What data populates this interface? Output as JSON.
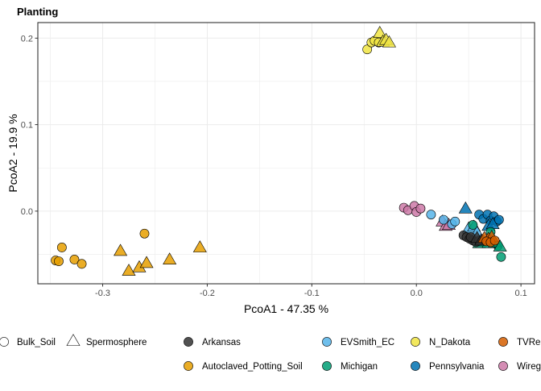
{
  "chart_data": {
    "type": "scatter",
    "title": "Planting",
    "xlabel": "PcoA1 - 47.35 %",
    "ylabel": "PcoA2 - 19.9 %",
    "xlim": [
      -0.362,
      0.113
    ],
    "ylim": [
      -0.084,
      0.218
    ],
    "x_ticks": [
      -0.3,
      -0.2,
      -0.1,
      0.0,
      0.1
    ],
    "x_tick_labels": [
      "-0.3",
      "-0.2",
      "-0.1",
      "0.0",
      "0.1"
    ],
    "y_ticks": [
      0.0,
      0.1,
      0.2
    ],
    "y_tick_labels": [
      "0.0",
      "0.1",
      "0.2"
    ],
    "grid": true,
    "legend_position": "bottom",
    "shape_legend": [
      {
        "label": "Bulk_Soil",
        "shape": "circle"
      },
      {
        "label": "Spermosphere",
        "shape": "triangle"
      }
    ],
    "color_legend": [
      {
        "label": "Arkansas",
        "color": "#333333"
      },
      {
        "label": "EVSmith_EC",
        "color": "#56B4E9"
      },
      {
        "label": "N_Dakota",
        "color": "#F0E442"
      },
      {
        "label": "TVRe",
        "color": "#D55E00"
      },
      {
        "label": "Autoclaved_Potting_Soil",
        "color": "#E69F00"
      },
      {
        "label": "Michigan",
        "color": "#009E73"
      },
      {
        "label": "Pennsylvania",
        "color": "#0072B2"
      },
      {
        "label": "Wireg",
        "color": "#CC79A7"
      }
    ],
    "points": [
      {
        "x": -0.345,
        "y": -0.057,
        "group": "Autoclaved_Potting_Soil",
        "shape": "circle"
      },
      {
        "x": -0.342,
        "y": -0.058,
        "group": "Autoclaved_Potting_Soil",
        "shape": "circle"
      },
      {
        "x": -0.339,
        "y": -0.042,
        "group": "Autoclaved_Potting_Soil",
        "shape": "circle"
      },
      {
        "x": -0.327,
        "y": -0.056,
        "group": "Autoclaved_Potting_Soil",
        "shape": "circle"
      },
      {
        "x": -0.32,
        "y": -0.061,
        "group": "Autoclaved_Potting_Soil",
        "shape": "circle"
      },
      {
        "x": -0.26,
        "y": -0.026,
        "group": "Autoclaved_Potting_Soil",
        "shape": "circle"
      },
      {
        "x": -0.283,
        "y": -0.047,
        "group": "Autoclaved_Potting_Soil",
        "shape": "triangle"
      },
      {
        "x": -0.275,
        "y": -0.07,
        "group": "Autoclaved_Potting_Soil",
        "shape": "triangle"
      },
      {
        "x": -0.265,
        "y": -0.066,
        "group": "Autoclaved_Potting_Soil",
        "shape": "triangle"
      },
      {
        "x": -0.258,
        "y": -0.061,
        "group": "Autoclaved_Potting_Soil",
        "shape": "triangle"
      },
      {
        "x": -0.236,
        "y": -0.057,
        "group": "Autoclaved_Potting_Soil",
        "shape": "triangle"
      },
      {
        "x": -0.207,
        "y": -0.043,
        "group": "Autoclaved_Potting_Soil",
        "shape": "triangle"
      },
      {
        "x": -0.047,
        "y": 0.187,
        "group": "N_Dakota",
        "shape": "circle"
      },
      {
        "x": -0.043,
        "y": 0.195,
        "group": "N_Dakota",
        "shape": "circle"
      },
      {
        "x": -0.04,
        "y": 0.197,
        "group": "N_Dakota",
        "shape": "circle"
      },
      {
        "x": -0.036,
        "y": 0.195,
        "group": "N_Dakota",
        "shape": "circle"
      },
      {
        "x": -0.035,
        "y": 0.205,
        "group": "N_Dakota",
        "shape": "triangle"
      },
      {
        "x": -0.032,
        "y": 0.195,
        "group": "N_Dakota",
        "shape": "triangle"
      },
      {
        "x": -0.029,
        "y": 0.197,
        "group": "N_Dakota",
        "shape": "triangle"
      },
      {
        "x": -0.026,
        "y": 0.194,
        "group": "N_Dakota",
        "shape": "triangle"
      },
      {
        "x": -0.012,
        "y": 0.004,
        "group": "Wireg",
        "shape": "circle"
      },
      {
        "x": -0.008,
        "y": 0.001,
        "group": "Wireg",
        "shape": "circle"
      },
      {
        "x": -0.002,
        "y": 0.006,
        "group": "Wireg",
        "shape": "circle"
      },
      {
        "x": 0.0,
        "y": -0.001,
        "group": "Wireg",
        "shape": "circle"
      },
      {
        "x": 0.004,
        "y": 0.003,
        "group": "Wireg",
        "shape": "circle"
      },
      {
        "x": 0.025,
        "y": -0.013,
        "group": "Wireg",
        "shape": "triangle"
      },
      {
        "x": 0.028,
        "y": -0.018,
        "group": "Wireg",
        "shape": "triangle"
      },
      {
        "x": 0.031,
        "y": -0.017,
        "group": "Wireg",
        "shape": "triangle"
      },
      {
        "x": 0.014,
        "y": -0.004,
        "group": "EVSmith_EC",
        "shape": "circle"
      },
      {
        "x": 0.026,
        "y": -0.01,
        "group": "EVSmith_EC",
        "shape": "circle"
      },
      {
        "x": 0.034,
        "y": -0.015,
        "group": "EVSmith_EC",
        "shape": "circle"
      },
      {
        "x": 0.037,
        "y": -0.012,
        "group": "EVSmith_EC",
        "shape": "circle"
      },
      {
        "x": 0.05,
        "y": -0.021,
        "group": "EVSmith_EC",
        "shape": "triangle"
      },
      {
        "x": 0.055,
        "y": -0.019,
        "group": "EVSmith_EC",
        "shape": "triangle"
      },
      {
        "x": 0.058,
        "y": -0.026,
        "group": "EVSmith_EC",
        "shape": "triangle"
      },
      {
        "x": 0.047,
        "y": 0.002,
        "group": "Pennsylvania",
        "shape": "triangle"
      },
      {
        "x": 0.06,
        "y": -0.004,
        "group": "Pennsylvania",
        "shape": "circle"
      },
      {
        "x": 0.064,
        "y": -0.009,
        "group": "Pennsylvania",
        "shape": "circle"
      },
      {
        "x": 0.068,
        "y": -0.004,
        "group": "Pennsylvania",
        "shape": "circle"
      },
      {
        "x": 0.071,
        "y": -0.011,
        "group": "Pennsylvania",
        "shape": "circle"
      },
      {
        "x": 0.074,
        "y": -0.006,
        "group": "Pennsylvania",
        "shape": "circle"
      },
      {
        "x": 0.077,
        "y": -0.012,
        "group": "Pennsylvania",
        "shape": "circle"
      },
      {
        "x": 0.079,
        "y": -0.01,
        "group": "Pennsylvania",
        "shape": "circle"
      },
      {
        "x": 0.069,
        "y": -0.018,
        "group": "Pennsylvania",
        "shape": "triangle"
      },
      {
        "x": 0.073,
        "y": -0.016,
        "group": "Pennsylvania",
        "shape": "triangle"
      },
      {
        "x": 0.054,
        "y": -0.016,
        "group": "Michigan",
        "shape": "circle"
      },
      {
        "x": 0.071,
        "y": -0.024,
        "group": "Michigan",
        "shape": "circle"
      },
      {
        "x": 0.078,
        "y": -0.04,
        "group": "Michigan",
        "shape": "circle"
      },
      {
        "x": 0.081,
        "y": -0.053,
        "group": "Michigan",
        "shape": "circle"
      },
      {
        "x": 0.06,
        "y": -0.038,
        "group": "Michigan",
        "shape": "triangle"
      },
      {
        "x": 0.064,
        "y": -0.036,
        "group": "Michigan",
        "shape": "triangle"
      },
      {
        "x": 0.069,
        "y": -0.038,
        "group": "Michigan",
        "shape": "triangle"
      },
      {
        "x": 0.075,
        "y": -0.037,
        "group": "Michigan",
        "shape": "triangle"
      },
      {
        "x": 0.08,
        "y": -0.042,
        "group": "Michigan",
        "shape": "triangle"
      },
      {
        "x": 0.045,
        "y": -0.028,
        "group": "Arkansas",
        "shape": "circle"
      },
      {
        "x": 0.048,
        "y": -0.03,
        "group": "Arkansas",
        "shape": "circle"
      },
      {
        "x": 0.051,
        "y": -0.032,
        "group": "Arkansas",
        "shape": "circle"
      },
      {
        "x": 0.054,
        "y": -0.034,
        "group": "Arkansas",
        "shape": "circle"
      },
      {
        "x": 0.052,
        "y": -0.03,
        "group": "Arkansas",
        "shape": "circle"
      },
      {
        "x": 0.057,
        "y": -0.036,
        "group": "Arkansas",
        "shape": "circle"
      },
      {
        "x": 0.06,
        "y": -0.034,
        "group": "Arkansas",
        "shape": "circle"
      },
      {
        "x": 0.058,
        "y": -0.032,
        "group": "Arkansas",
        "shape": "triangle"
      },
      {
        "x": 0.062,
        "y": -0.035,
        "group": "Arkansas",
        "shape": "triangle"
      },
      {
        "x": 0.065,
        "y": -0.032,
        "group": "TVRe",
        "shape": "triangle"
      },
      {
        "x": 0.069,
        "y": -0.033,
        "group": "TVRe",
        "shape": "triangle"
      },
      {
        "x": 0.072,
        "y": -0.031,
        "group": "TVRe",
        "shape": "triangle"
      },
      {
        "x": 0.067,
        "y": -0.035,
        "group": "TVRe",
        "shape": "circle"
      },
      {
        "x": 0.071,
        "y": -0.036,
        "group": "TVRe",
        "shape": "circle"
      },
      {
        "x": 0.075,
        "y": -0.034,
        "group": "TVRe",
        "shape": "circle"
      }
    ]
  }
}
